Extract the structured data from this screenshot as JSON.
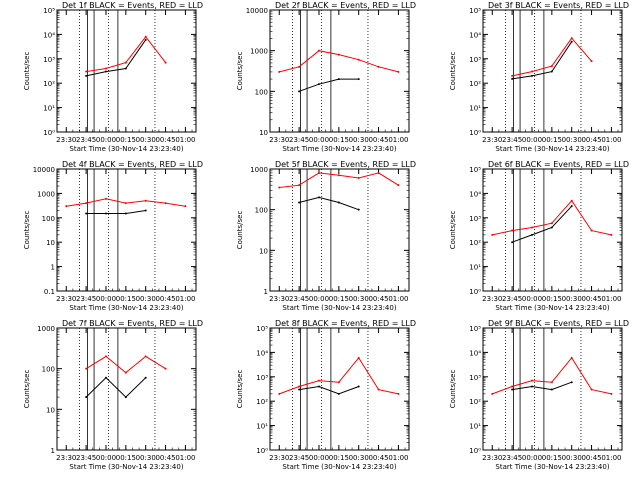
{
  "x_axis_label": "Start Time (30-Nov-14 23:23:40)",
  "y_axis_label": "Counts/sec",
  "x_tick_labels": [
    "23:30",
    "23:45",
    "00:00",
    "00:15",
    "00:30",
    "00:45",
    "01:00"
  ],
  "colors": {
    "events": "#000000",
    "lld": "#ff0000"
  },
  "chart_data": [
    {
      "type": "line",
      "title": "Det 1f BLACK = Events, RED = LLD",
      "ylog": true,
      "ylim": [
        1,
        100000
      ],
      "y_tick_labels": [
        "10⁰",
        "10¹",
        "10²",
        "10³",
        "10⁴",
        "10⁵"
      ],
      "ytick_exps": [
        0,
        1,
        2,
        3,
        4,
        5
      ],
      "x": [
        "23:30",
        "23:45",
        "00:00",
        "00:15",
        "00:30",
        "00:45",
        "01:00"
      ],
      "series": [
        {
          "name": "Events",
          "values": [
            null,
            200,
            300,
            400,
            6000,
            null,
            null
          ]
        },
        {
          "name": "LLD",
          "values": [
            null,
            300,
            400,
            700,
            8000,
            700,
            null
          ]
        }
      ]
    },
    {
      "type": "line",
      "title": "Det 2f BLACK = Events, RED = LLD",
      "ylog": true,
      "ylim": [
        10,
        10000
      ],
      "y_tick_labels": [
        "10",
        "100",
        "1000",
        "10000"
      ],
      "ytick_exps": [
        1,
        2,
        3,
        4
      ],
      "x": [
        "23:30",
        "23:45",
        "00:00",
        "00:15",
        "00:30",
        "00:45",
        "01:00"
      ],
      "series": [
        {
          "name": "Events",
          "values": [
            null,
            100,
            150,
            200,
            200,
            null,
            null
          ]
        },
        {
          "name": "LLD",
          "values": [
            300,
            400,
            1000,
            800,
            600,
            400,
            300
          ]
        }
      ]
    },
    {
      "type": "line",
      "title": "Det 3f BLACK = Events, RED = LLD",
      "ylog": true,
      "ylim": [
        1,
        100000
      ],
      "y_tick_labels": [
        "10⁰",
        "10¹",
        "10²",
        "10³",
        "10⁴",
        "10⁵"
      ],
      "ytick_exps": [
        0,
        1,
        2,
        3,
        4,
        5
      ],
      "x": [
        "23:30",
        "23:45",
        "00:00",
        "00:15",
        "00:30",
        "00:45",
        "01:00"
      ],
      "series": [
        {
          "name": "Events",
          "values": [
            null,
            150,
            200,
            300,
            5000,
            null,
            null
          ]
        },
        {
          "name": "LLD",
          "values": [
            null,
            200,
            300,
            500,
            7000,
            800,
            null
          ]
        }
      ]
    },
    {
      "type": "line",
      "title": "Det 4f BLACK = Events, RED = LLD",
      "ylog": true,
      "ylim": [
        0.1,
        10000
      ],
      "y_tick_labels": [
        "0.1",
        "1",
        "10",
        "100",
        "1000",
        "10000"
      ],
      "ytick_exps": [
        -1,
        0,
        1,
        2,
        3,
        4
      ],
      "x": [
        "23:30",
        "23:45",
        "00:00",
        "00:15",
        "00:30",
        "00:45",
        "01:00"
      ],
      "series": [
        {
          "name": "Events",
          "values": [
            null,
            150,
            150,
            150,
            200,
            null,
            null
          ]
        },
        {
          "name": "LLD",
          "values": [
            300,
            400,
            600,
            400,
            500,
            400,
            300
          ]
        }
      ]
    },
    {
      "type": "line",
      "title": "Det 5f BLACK = Events, RED = LLD",
      "ylog": true,
      "ylim": [
        1,
        1000
      ],
      "y_tick_labels": [
        "1",
        "10",
        "100",
        "1000"
      ],
      "ytick_exps": [
        0,
        1,
        2,
        3
      ],
      "x": [
        "23:30",
        "23:45",
        "00:00",
        "00:15",
        "00:30",
        "00:45",
        "01:00"
      ],
      "series": [
        {
          "name": "Events",
          "values": [
            null,
            150,
            200,
            150,
            100,
            null,
            null
          ]
        },
        {
          "name": "LLD",
          "values": [
            350,
            400,
            800,
            700,
            600,
            800,
            400
          ]
        }
      ]
    },
    {
      "type": "line",
      "title": "Det 6f BLACK = Events, RED = LLD",
      "ylog": true,
      "ylim": [
        1,
        100000
      ],
      "y_tick_labels": [
        "10⁰",
        "10¹",
        "10²",
        "10³",
        "10⁴",
        "10⁵"
      ],
      "ytick_exps": [
        0,
        1,
        2,
        3,
        4,
        5
      ],
      "x": [
        "23:30",
        "23:45",
        "00:00",
        "00:15",
        "00:30",
        "00:45",
        "01:00"
      ],
      "series": [
        {
          "name": "Events",
          "values": [
            null,
            100,
            200,
            400,
            3000,
            null,
            null
          ]
        },
        {
          "name": "LLD",
          "values": [
            200,
            300,
            400,
            600,
            5000,
            300,
            200
          ]
        }
      ]
    },
    {
      "type": "line",
      "title": "Det 7f BLACK = Events, RED = LLD",
      "ylog": true,
      "ylim": [
        1,
        1000
      ],
      "y_tick_labels": [
        "1",
        "10",
        "100",
        "1000"
      ],
      "ytick_exps": [
        0,
        1,
        2,
        3
      ],
      "x": [
        "23:30",
        "23:45",
        "00:00",
        "00:15",
        "00:30",
        "00:45",
        "01:00"
      ],
      "series": [
        {
          "name": "Events",
          "values": [
            null,
            20,
            60,
            20,
            60,
            null,
            null
          ]
        },
        {
          "name": "LLD",
          "values": [
            null,
            100,
            200,
            80,
            200,
            100,
            null
          ]
        }
      ]
    },
    {
      "type": "line",
      "title": "Det 8f BLACK = Events, RED = LLD",
      "ylog": true,
      "ylim": [
        1,
        100000
      ],
      "y_tick_labels": [
        "10⁰",
        "10¹",
        "10²",
        "10³",
        "10⁴",
        "10⁵"
      ],
      "ytick_exps": [
        0,
        1,
        2,
        3,
        4,
        5
      ],
      "x": [
        "23:30",
        "23:45",
        "00:00",
        "00:15",
        "00:30",
        "00:45",
        "01:00"
      ],
      "series": [
        {
          "name": "Events",
          "values": [
            null,
            300,
            400,
            200,
            400,
            null,
            null
          ]
        },
        {
          "name": "LLD",
          "values": [
            200,
            400,
            700,
            600,
            6000,
            300,
            200
          ]
        }
      ]
    },
    {
      "type": "line",
      "title": "Det 9f BLACK = Events, RED = LLD",
      "ylog": true,
      "ylim": [
        1,
        100000
      ],
      "y_tick_labels": [
        "10⁰",
        "10¹",
        "10²",
        "10³",
        "10⁴",
        "10⁵"
      ],
      "ytick_exps": [
        0,
        1,
        2,
        3,
        4,
        5
      ],
      "x": [
        "23:30",
        "23:45",
        "00:00",
        "00:15",
        "00:30",
        "00:45",
        "01:00"
      ],
      "series": [
        {
          "name": "Events",
          "values": [
            null,
            300,
            400,
            300,
            600,
            null,
            null
          ]
        },
        {
          "name": "LLD",
          "values": [
            200,
            400,
            700,
            600,
            6000,
            300,
            200
          ]
        }
      ]
    }
  ]
}
